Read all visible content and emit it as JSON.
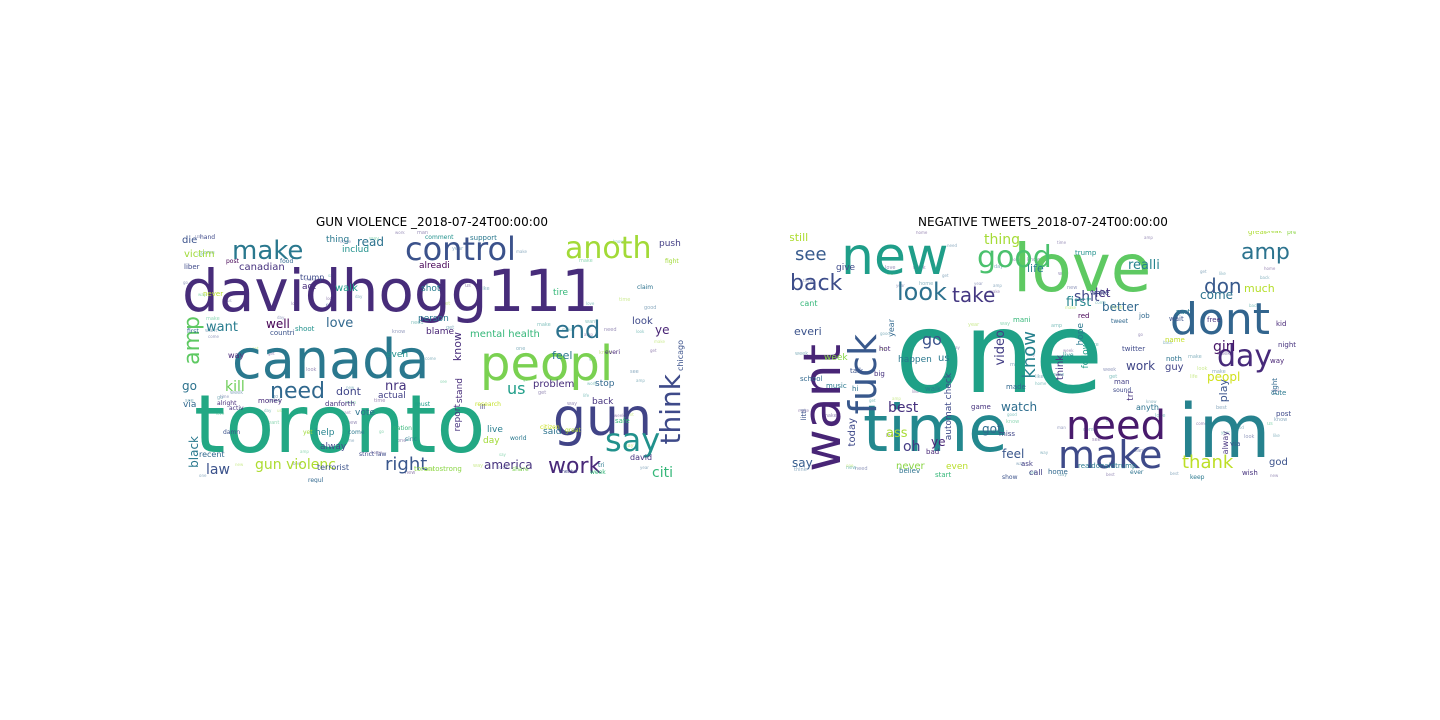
{
  "figure": {
    "panels": [
      {
        "title": "GUN VIOLENCE _2018-07-24T00:00:00",
        "words": [
          {
            "t": "davidhogg111",
            "c": "#472c7a"
          },
          {
            "t": "toronto",
            "c": "#22a884"
          },
          {
            "t": "canada",
            "c": "#2a788e"
          },
          {
            "t": "peopl",
            "c": "#7ad151"
          },
          {
            "t": "gun",
            "c": "#414487"
          },
          {
            "t": "control",
            "c": "#3b528b"
          },
          {
            "t": "anoth",
            "c": "#a2da37"
          },
          {
            "t": "make",
            "c": "#2a788e"
          },
          {
            "t": "say",
            "c": "#21918c"
          },
          {
            "t": "work",
            "c": "#482878"
          },
          {
            "t": "think",
            "c": "#3e4a89"
          },
          {
            "t": "end",
            "c": "#2c728e"
          },
          {
            "t": "need",
            "c": "#31688e"
          },
          {
            "t": "amp",
            "c": "#5ec962"
          },
          {
            "t": "right",
            "c": "#39568c"
          },
          {
            "t": "law",
            "c": "#3b528b"
          },
          {
            "t": "gun violenc",
            "c": "#addc30"
          },
          {
            "t": "us",
            "c": "#1f9e89"
          },
          {
            "t": "citi",
            "c": "#35b779"
          },
          {
            "t": "america",
            "c": "#46337e"
          },
          {
            "t": "kill",
            "c": "#6ece58"
          },
          {
            "t": "love",
            "c": "#31688e"
          },
          {
            "t": "want",
            "c": "#287c8e"
          },
          {
            "t": "well",
            "c": "#440154"
          },
          {
            "t": "read",
            "c": "#2c728e"
          },
          {
            "t": "know",
            "c": "#472c7a"
          },
          {
            "t": "nra",
            "c": "#46337e"
          },
          {
            "t": "black",
            "c": "#2a788e"
          },
          {
            "t": "ye",
            "c": "#482475"
          },
          {
            "t": "go",
            "c": "#2c728e"
          },
          {
            "t": "dont",
            "c": "#404688"
          },
          {
            "t": "problem",
            "c": "#472d7b"
          },
          {
            "t": "mental health",
            "c": "#35b779"
          },
          {
            "t": "feel",
            "c": "#2a788e"
          },
          {
            "t": "look",
            "c": "#3e4989"
          },
          {
            "t": "die",
            "c": "#3b528b"
          },
          {
            "t": "victim",
            "c": "#a0da39"
          },
          {
            "t": "liber",
            "c": "#3e4989"
          },
          {
            "t": "canadian",
            "c": "#46327e"
          },
          {
            "t": "thing",
            "c": "#2a788e"
          },
          {
            "t": "includ",
            "c": "#21918c"
          },
          {
            "t": "walk",
            "c": "#1f9a8a"
          },
          {
            "t": "alreadi",
            "c": "#440154"
          },
          {
            "t": "shot",
            "c": "#287d8e"
          },
          {
            "t": "tire",
            "c": "#35b779"
          },
          {
            "t": "push",
            "c": "#433e85"
          },
          {
            "t": "chicago",
            "c": "#3b528b"
          },
          {
            "t": "stop",
            "c": "#31688e"
          },
          {
            "t": "back",
            "c": "#46337e"
          },
          {
            "t": "said",
            "c": "#2c728e"
          },
          {
            "t": "live",
            "c": "#287d8e"
          },
          {
            "t": "day",
            "c": "#a2da37"
          },
          {
            "t": "report",
            "c": "#46327e"
          },
          {
            "t": "stand",
            "c": "#472c7a"
          },
          {
            "t": "help",
            "c": "#25848e"
          },
          {
            "t": "alway",
            "c": "#3e4a89"
          },
          {
            "t": "vote",
            "c": "#2c728e"
          },
          {
            "t": "actual",
            "c": "#424086"
          },
          {
            "t": "even",
            "c": "#21918c"
          },
          {
            "t": "person",
            "c": "#2a788e"
          },
          {
            "t": "blame",
            "c": "#482475"
          },
          {
            "t": "act",
            "c": "#472c7a"
          },
          {
            "t": "via",
            "c": "#31688e"
          },
          {
            "t": "way",
            "c": "#482878"
          },
          {
            "t": "never",
            "c": "#b5de2b"
          },
          {
            "t": "david",
            "c": "#46327e"
          },
          {
            "t": "terrorist",
            "c": "#3b528b"
          },
          {
            "t": "recent",
            "c": "#31688e"
          },
          {
            "t": "torontostrong",
            "c": "#8bd646"
          },
          {
            "t": "trump",
            "c": "#3e4a89"
          },
          {
            "t": "safe",
            "c": "#35b779"
          },
          {
            "t": "support",
            "c": "#2a788e"
          },
          {
            "t": "citizen",
            "c": "#c8e020"
          },
          {
            "t": "strict law",
            "c": "#3e4a89"
          },
          {
            "t": "money",
            "c": "#482878"
          },
          {
            "t": "shoot",
            "c": "#21918c"
          },
          {
            "t": "countri",
            "c": "#3b528b"
          },
          {
            "t": "danforth",
            "c": "#46337e"
          },
          {
            "t": "nation",
            "c": "#35b779"
          },
          {
            "t": "world",
            "c": "#2a788e"
          },
          {
            "t": "first",
            "c": "#31688e"
          },
          {
            "t": "great",
            "c": "#addc30"
          },
          {
            "t": "must",
            "c": "#1f9e89"
          },
          {
            "t": "keep",
            "c": "#3e4a89"
          },
          {
            "t": "post",
            "c": "#440154"
          },
          {
            "t": "food",
            "c": "#31688e"
          },
          {
            "t": "claim",
            "c": "#2c728e"
          },
          {
            "t": "fight",
            "c": "#a2da37"
          },
          {
            "t": "comment",
            "c": "#21918c"
          },
          {
            "t": "mental",
            "c": "#404688"
          },
          {
            "t": "research",
            "c": "#c2df23"
          },
          {
            "t": "regul",
            "c": "#31688e"
          },
          {
            "t": "tri",
            "c": "#2a788e"
          },
          {
            "t": "alright",
            "c": "#472c7a"
          },
          {
            "t": "activ",
            "c": "#46337e"
          },
          {
            "t": "sinc",
            "c": "#287d8e"
          },
          {
            "t": "ill",
            "c": "#433e85"
          },
          {
            "t": "damn",
            "c": "#3b528b"
          },
          {
            "t": "share",
            "c": "#7ad151"
          },
          {
            "t": "come",
            "c": "#2a788e"
          },
          {
            "t": "yet",
            "c": "#a0da39"
          },
          {
            "t": "everi",
            "c": "#482878"
          },
          {
            "t": "hand",
            "c": "#3e4989"
          },
          {
            "t": "week",
            "c": "#35b779"
          },
          {
            "t": "toronat",
            "c": "#2a788e"
          },
          {
            "t": "correct",
            "c": "#46327e"
          }
        ]
      },
      {
        "title": "NEGATIVE TWEETS_2018-07-24T00:00:00",
        "words": [
          {
            "t": "one",
            "c": "#1fa187"
          },
          {
            "t": "im",
            "c": "#26828e"
          },
          {
            "t": "time",
            "c": "#23888e"
          },
          {
            "t": "love",
            "c": "#5ec962"
          },
          {
            "t": "new",
            "c": "#1f9e89"
          },
          {
            "t": "want",
            "c": "#482576"
          },
          {
            "t": "fuck",
            "c": "#38588c"
          },
          {
            "t": "dont",
            "c": "#32658e"
          },
          {
            "t": "need",
            "c": "#481a6c"
          },
          {
            "t": "make",
            "c": "#3e4a89"
          },
          {
            "t": "day",
            "c": "#472a7a"
          },
          {
            "t": "good",
            "c": "#4ac16d"
          },
          {
            "t": "look",
            "c": "#2d718e"
          },
          {
            "t": "back",
            "c": "#3d4d8a"
          },
          {
            "t": "take",
            "c": "#453882"
          },
          {
            "t": "don",
            "c": "#38598c"
          },
          {
            "t": "amp",
            "c": "#2c738e"
          },
          {
            "t": "thank",
            "c": "#bddf26"
          },
          {
            "t": "know",
            "c": "#26818e"
          },
          {
            "t": "see",
            "c": "#375b8d"
          },
          {
            "t": "thing",
            "c": "#a5db36"
          },
          {
            "t": "shit",
            "c": "#3f4889"
          },
          {
            "t": "let",
            "c": "#46337e"
          },
          {
            "t": "realli",
            "c": "#25838e"
          },
          {
            "t": "come",
            "c": "#2c728e"
          },
          {
            "t": "first",
            "c": "#25848e"
          },
          {
            "t": "better",
            "c": "#31688e"
          },
          {
            "t": "life",
            "c": "#277f8e"
          },
          {
            "t": "watch",
            "c": "#2e6d8e"
          },
          {
            "t": "go",
            "c": "#3b528b"
          },
          {
            "t": "oh",
            "c": "#443b84"
          },
          {
            "t": "work",
            "c": "#404688"
          },
          {
            "t": "peopl",
            "c": "#d0e11c"
          },
          {
            "t": "girl",
            "c": "#481769"
          },
          {
            "t": "best",
            "c": "#46307e"
          },
          {
            "t": "ass",
            "c": "#a8db34"
          },
          {
            "t": "say",
            "c": "#365d8d"
          },
          {
            "t": "feel",
            "c": "#39568c"
          },
          {
            "t": "video",
            "c": "#433e85"
          },
          {
            "t": "play",
            "c": "#3a548c"
          },
          {
            "t": "got",
            "c": "#2f6c8e"
          },
          {
            "t": "ye",
            "c": "#482475"
          },
          {
            "t": "still",
            "c": "#addc30"
          },
          {
            "t": "much",
            "c": "#b5de2b"
          },
          {
            "t": "everi",
            "c": "#3b528b"
          },
          {
            "t": "week",
            "c": "#86d549"
          },
          {
            "t": "today",
            "c": "#3e4989"
          },
          {
            "t": "think",
            "c": "#453781"
          },
          {
            "t": "hope",
            "c": "#2a788e"
          },
          {
            "t": "follow",
            "c": "#1f9e89"
          },
          {
            "t": "guy",
            "c": "#414487"
          },
          {
            "t": "us",
            "c": "#2a788e"
          },
          {
            "t": "god",
            "c": "#3b528b"
          },
          {
            "t": "tri",
            "c": "#46337e"
          },
          {
            "t": "never",
            "c": "#8bd646"
          },
          {
            "t": "even",
            "c": "#b8de29"
          },
          {
            "t": "give",
            "c": "#3e4a89"
          },
          {
            "t": "year",
            "c": "#31688e"
          },
          {
            "t": "happen",
            "c": "#2a788e"
          },
          {
            "t": "cant",
            "c": "#35b779"
          },
          {
            "t": "automat check",
            "c": "#3e4a89"
          },
          {
            "t": "anyth",
            "c": "#2c728e"
          },
          {
            "t": "alway",
            "c": "#46337e"
          },
          {
            "t": "call",
            "c": "#433e85"
          },
          {
            "t": "school",
            "c": "#31688e"
          },
          {
            "t": "music",
            "c": "#2a788e"
          },
          {
            "t": "littl",
            "c": "#3b528b"
          },
          {
            "t": "believ",
            "c": "#2c728e"
          },
          {
            "t": "start",
            "c": "#35b779"
          },
          {
            "t": "walk",
            "c": "#287d8e"
          },
          {
            "t": "miss",
            "c": "#404688"
          },
          {
            "t": "bad",
            "c": "#482878"
          },
          {
            "t": "home",
            "c": "#31688e"
          },
          {
            "t": "realdonaldtrump",
            "c": "#2a788e"
          },
          {
            "t": "twitter",
            "c": "#3e4989"
          },
          {
            "t": "game",
            "c": "#46337e"
          },
          {
            "t": "made",
            "c": "#31688e"
          },
          {
            "t": "talk",
            "c": "#3b528b"
          },
          {
            "t": "hot",
            "c": "#482475"
          },
          {
            "t": "big",
            "c": "#46327e"
          },
          {
            "t": "hi",
            "c": "#2c728e"
          },
          {
            "t": "man",
            "c": "#433e85"
          },
          {
            "t": "trump",
            "c": "#21918c"
          },
          {
            "t": "white",
            "c": "#3e4a89"
          },
          {
            "t": "part",
            "c": "#2a788e"
          },
          {
            "t": "red",
            "c": "#440154"
          },
          {
            "t": "job",
            "c": "#31688e"
          },
          {
            "t": "wait",
            "c": "#3b528b"
          },
          {
            "t": "free",
            "c": "#46337e"
          },
          {
            "t": "great",
            "c": "#addc30"
          },
          {
            "t": "kid",
            "c": "#482878"
          },
          {
            "t": "name",
            "c": "#c2df23"
          },
          {
            "t": "noth",
            "c": "#2c728e"
          },
          {
            "t": "way",
            "c": "#482475"
          },
          {
            "t": "right",
            "c": "#31688e"
          },
          {
            "t": "post",
            "c": "#3e4989"
          },
          {
            "t": "cute",
            "c": "#2a788e"
          },
          {
            "t": "wish",
            "c": "#46327e"
          },
          {
            "t": "via",
            "c": "#3b528b"
          },
          {
            "t": "ask",
            "c": "#433e85"
          },
          {
            "t": "live",
            "c": "#21918c"
          },
          {
            "t": "mani",
            "c": "#35b779"
          },
          {
            "t": "tweet",
            "c": "#31688e"
          },
          {
            "t": "sound",
            "c": "#3e4a89"
          },
          {
            "t": "keep",
            "c": "#2a788e"
          },
          {
            "t": "show",
            "c": "#3b528b"
          },
          {
            "t": "night",
            "c": "#46337e"
          },
          {
            "t": "pretti",
            "c": "#8bd646"
          },
          {
            "t": "break",
            "c": "#a2da37"
          },
          {
            "t": "ever",
            "c": "#2c728e"
          }
        ]
      }
    ]
  }
}
